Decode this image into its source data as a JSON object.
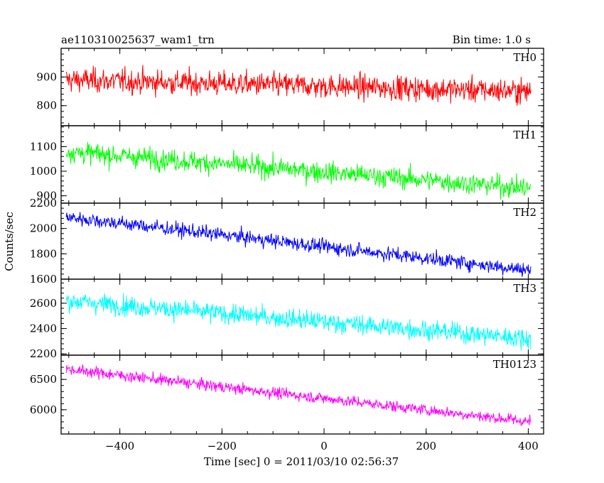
{
  "chart_data": {
    "type": "line",
    "title_left": "ae110310025637_wam1_trn",
    "title_right": "Bin time: 1.0 s",
    "xlabel": "Time [sec] 0 = 2011/03/10 02:56:37",
    "ylabel": "Counts/sec",
    "xlim": [
      -515,
      430
    ],
    "x_ticks": [
      -400,
      -200,
      0,
      200,
      400
    ],
    "x_tick_labels": [
      "−400",
      "−200",
      "0",
      "200",
      "400"
    ],
    "x_range_data": [
      -505,
      405
    ],
    "panels": [
      {
        "name": "TH0",
        "color": "#ff0000",
        "ylim": [
          730,
          1000
        ],
        "yticks": [
          800,
          900
        ],
        "ytick_labels": [
          "800",
          "900"
        ],
        "trend": [
          [
            -505,
            890
          ],
          [
            405,
            850
          ]
        ],
        "noise": 30
      },
      {
        "name": "TH1",
        "color": "#00ff00",
        "ylim": [
          870,
          1185
        ],
        "yticks": [
          900,
          1000,
          1100
        ],
        "ytick_labels": [
          "900",
          "1000",
          "1100"
        ],
        "trend": [
          [
            -505,
            1080
          ],
          [
            405,
            930
          ]
        ],
        "noise": 30
      },
      {
        "name": "TH2",
        "color": "#0000ff",
        "ylim": [
          1600,
          2200
        ],
        "yticks": [
          1600,
          1800,
          2000,
          2200
        ],
        "ytick_labels": [
          "1600",
          "1800",
          "2000",
          "2200"
        ],
        "trend": [
          [
            -505,
            2090
          ],
          [
            405,
            1670
          ]
        ],
        "noise": 40
      },
      {
        "name": "TH3",
        "color": "#00ffff",
        "ylim": [
          2190,
          2790
        ],
        "yticks": [
          2200,
          2400,
          2600
        ],
        "ytick_labels": [
          "2200",
          "2400",
          "2600"
        ],
        "trend": [
          [
            -505,
            2620
          ],
          [
            405,
            2320
          ]
        ],
        "noise": 55
      },
      {
        "name": "TH0123",
        "color": "#ff00ff",
        "ylim": [
          5600,
          6900
        ],
        "yticks": [
          6000,
          6500
        ],
        "ytick_labels": [
          "6000",
          "6500"
        ],
        "trend": [
          [
            -505,
            6670
          ],
          [
            405,
            5800
          ]
        ],
        "noise": 65
      }
    ]
  }
}
